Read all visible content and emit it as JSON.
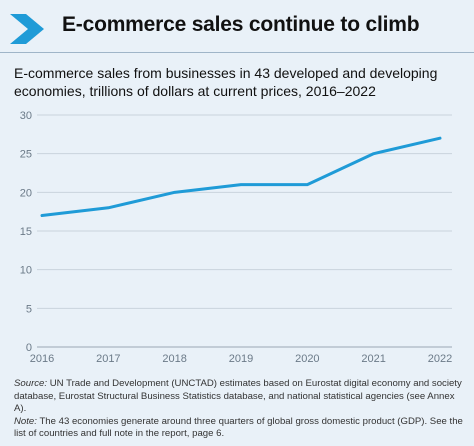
{
  "title": "E-commerce sales continue to climb",
  "subtitle": "E-commerce sales from businesses in 43 developed and developing economies, trillions of dollars at current prices, 2016–2022",
  "colors": {
    "line": "#1f9bd7",
    "accent": "#1f9bd7",
    "grid": "#c9d3dd",
    "background": "#e9f1f8"
  },
  "icons": {
    "header": "chevron-right-icon"
  },
  "chart_data": {
    "type": "line",
    "title": "",
    "xlabel": "",
    "ylabel": "",
    "x": [
      "2016",
      "2017",
      "2018",
      "2019",
      "2020",
      "2021",
      "2022"
    ],
    "series": [
      {
        "values": [
          17,
          18,
          20,
          21,
          21,
          25,
          27
        ]
      }
    ],
    "ylim": [
      0,
      30
    ],
    "yticks": [
      0,
      5,
      10,
      15,
      20,
      25,
      30
    ],
    "grid": true,
    "legend": "none"
  },
  "footnote": {
    "source_label": "Source:",
    "source_text": "UN Trade and Development (UNCTAD) estimates based on Eurostat digital economy and society database, Eurostat Structural Business Statistics database, and national statistical agencies (see Annex A).",
    "note_label": "Note:",
    "note_text": "The 43 economies generate around three quarters of global gross domestic product (GDP). See the list of countries and full note in the report, page 6."
  }
}
